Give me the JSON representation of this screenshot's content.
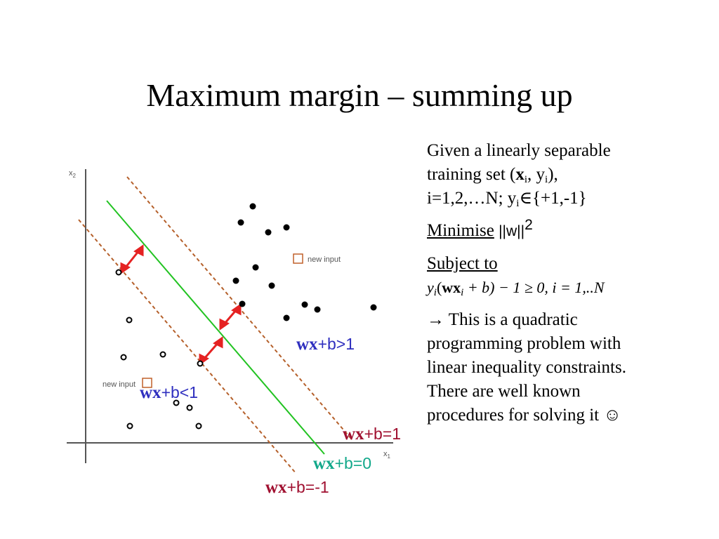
{
  "slide": {
    "title": "Maximum margin – summing up"
  },
  "diagram": {
    "axis_x_label": "x",
    "axis_x_sub": "1",
    "axis_y_label": "x",
    "axis_y_sub": "2",
    "new_input_label_right": "new input",
    "new_input_label_left": "new input",
    "label_pos_bold": "wx",
    "label_pos_rest": "+b>1",
    "label_neg_bold": "wx",
    "label_neg_rest": "+b<1",
    "label_plus1_bold": "wx",
    "label_plus1_rest": "+b=1",
    "label_zero_bold": "wx",
    "label_zero_rest": "+b=0",
    "label_minus1_bold": "wx",
    "label_minus1_rest": "+b=-1",
    "colors": {
      "margin_lines": "#b5602b",
      "hyperplane": "#22c322",
      "arrows": "#e52222",
      "label_pos": "#2f2fbf",
      "label_margin": "#a01030",
      "label_zero": "#12a88a",
      "new_input_box": "#c0602a"
    }
  },
  "text": {
    "given_line1": "Given a linearly separable",
    "given_line2a": "training set (",
    "given_x": "x",
    "given_i1": "i",
    "given_line2b": ", y",
    "given_i2": "i",
    "given_line2c": "),",
    "given_line3a": "i=1,2,…N; y",
    "given_i3": "i",
    "given_line3b": "∈{+1,-1}",
    "minimise_label": "Minimise",
    "minimise_expr": "||w||",
    "minimise_sup": "2",
    "subject_label": "Subject to",
    "formula": {
      "y": "y",
      "i1": "i",
      "open": "(",
      "wx": "wx",
      "i2": "i",
      "rest": " + b) − 1 ≥ 0,   i = 1,..N"
    },
    "arrow": "→",
    "conclusion_line1": " This is a quadratic",
    "conclusion_line2": "programming problem with",
    "conclusion_line3": "linear inequality constraints.",
    "conclusion_line4": "There are well known",
    "conclusion_line5": "procedures for solving it",
    "smiley": "☺"
  }
}
